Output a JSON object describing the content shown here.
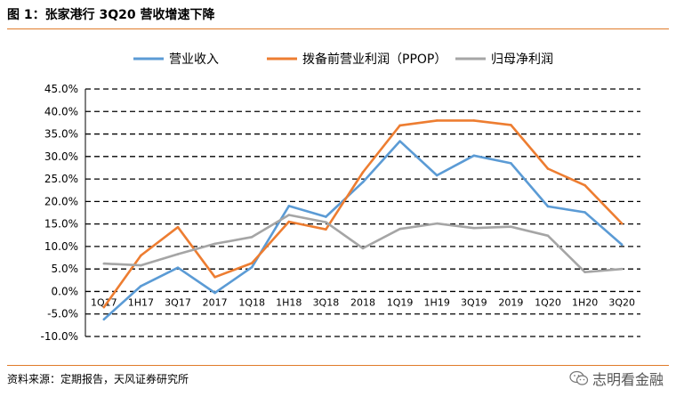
{
  "figure": {
    "title": "图 1：张家港行 3Q20 营收增速下降",
    "source": "资料来源：定期报告，天风证券研究所",
    "watermark": "志明看金融",
    "watermark_icon": "wechat-icon"
  },
  "chart_data": {
    "type": "line",
    "categories": [
      "1Q17",
      "1H17",
      "3Q17",
      "2017",
      "1Q18",
      "1H18",
      "3Q18",
      "2018",
      "1Q19",
      "1H19",
      "3Q19",
      "2019",
      "1Q20",
      "1H20",
      "3Q20"
    ],
    "series": [
      {
        "name": "营业收入",
        "color": "#5b9bd5",
        "values": [
          -6.2,
          1.2,
          5.3,
          -0.3,
          5.4,
          19.0,
          16.6,
          24.3,
          33.4,
          25.8,
          30.2,
          28.5,
          18.9,
          17.6,
          10.4
        ]
      },
      {
        "name": "拨备前营业利润（PPOP）",
        "color": "#ed7d31",
        "values": [
          -3.5,
          8.0,
          14.3,
          3.2,
          6.3,
          15.5,
          13.8,
          26.5,
          36.9,
          38.0,
          38.0,
          37.0,
          27.3,
          23.6,
          15.1
        ]
      },
      {
        "name": "归母净利润",
        "color": "#a5a5a5",
        "values": [
          6.2,
          5.8,
          8.3,
          10.6,
          12.1,
          17.0,
          15.4,
          9.6,
          13.9,
          15.1,
          14.1,
          14.4,
          12.4,
          4.3,
          5.0
        ]
      }
    ],
    "ylim": [
      -10,
      45
    ],
    "yticks": [
      "-10.0%",
      "-5.0%",
      "0.0%",
      "5.0%",
      "10.0%",
      "15.0%",
      "20.0%",
      "25.0%",
      "30.0%",
      "35.0%",
      "40.0%",
      "45.0%"
    ],
    "grid": "horizontal-dashed",
    "legend_position": "top"
  }
}
